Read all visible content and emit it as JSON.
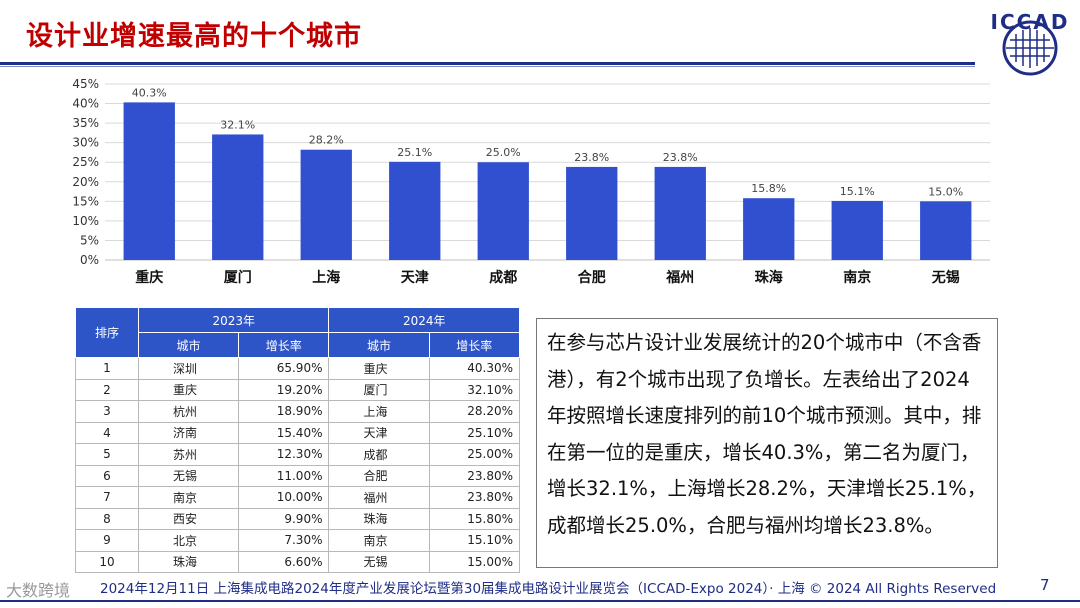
{
  "header": {
    "title": "设计业增速最高的十个城市",
    "logo_text": "ICCAD"
  },
  "chart_data": {
    "type": "bar",
    "categories": [
      "重庆",
      "厦门",
      "上海",
      "天津",
      "成都",
      "合肥",
      "福州",
      "珠海",
      "南京",
      "无锡"
    ],
    "values": [
      40.3,
      32.1,
      28.2,
      25.1,
      25.0,
      23.8,
      23.8,
      15.8,
      15.1,
      15.0
    ],
    "data_labels": [
      "40.3%",
      "32.1%",
      "28.2%",
      "25.1%",
      "25.0%",
      "23.8%",
      "23.8%",
      "15.8%",
      "15.1%",
      "15.0%"
    ],
    "yticks": [
      "0%",
      "5%",
      "10%",
      "15%",
      "20%",
      "25%",
      "30%",
      "35%",
      "40%",
      "45%"
    ],
    "ylim": [
      0,
      45
    ],
    "grid": true,
    "bar_color": "#3050cf"
  },
  "table": {
    "rank_header": "排序",
    "year_a": "2023年",
    "year_b": "2024年",
    "city_header": "城市",
    "rate_header": "增长率",
    "rows": [
      {
        "rank": "1",
        "city_a": "深圳",
        "rate_a": "65.90%",
        "city_b": "重庆",
        "rate_b": "40.30%"
      },
      {
        "rank": "2",
        "city_a": "重庆",
        "rate_a": "19.20%",
        "city_b": "厦门",
        "rate_b": "32.10%"
      },
      {
        "rank": "3",
        "city_a": "杭州",
        "rate_a": "18.90%",
        "city_b": "上海",
        "rate_b": "28.20%"
      },
      {
        "rank": "4",
        "city_a": "济南",
        "rate_a": "15.40%",
        "city_b": "天津",
        "rate_b": "25.10%"
      },
      {
        "rank": "5",
        "city_a": "苏州",
        "rate_a": "12.30%",
        "city_b": "成都",
        "rate_b": "25.00%"
      },
      {
        "rank": "6",
        "city_a": "无锡",
        "rate_a": "11.00%",
        "city_b": "合肥",
        "rate_b": "23.80%"
      },
      {
        "rank": "7",
        "city_a": "南京",
        "rate_a": "10.00%",
        "city_b": "福州",
        "rate_b": "23.80%"
      },
      {
        "rank": "8",
        "city_a": "西安",
        "rate_a": "9.90%",
        "city_b": "珠海",
        "rate_b": "15.80%"
      },
      {
        "rank": "9",
        "city_a": "北京",
        "rate_a": "7.30%",
        "city_b": "南京",
        "rate_b": "15.10%"
      },
      {
        "rank": "10",
        "city_a": "珠海",
        "rate_a": "6.60%",
        "city_b": "无锡",
        "rate_b": "15.00%"
      }
    ]
  },
  "description": "在参与芯片设计业发展统计的20个城市中（不含香港），有2个城市出现了负增长。左表给出了2024年按照增长速度排列的前10个城市预测。其中，排在第一位的是重庆，增长40.3%，第二名为厦门，增长32.1%，上海增长28.2%，天津增长25.1%，成都增长25.0%，合肥与福州均增长23.8%。",
  "footer": {
    "text": "2024年12月11日 上海集成电路2024年度产业发展论坛暨第30届集成电路设计业展览会（ICCAD-Expo 2024）· 上海 © 2024 All Rights Reserved",
    "page": "7",
    "watermark": "大数跨境"
  }
}
